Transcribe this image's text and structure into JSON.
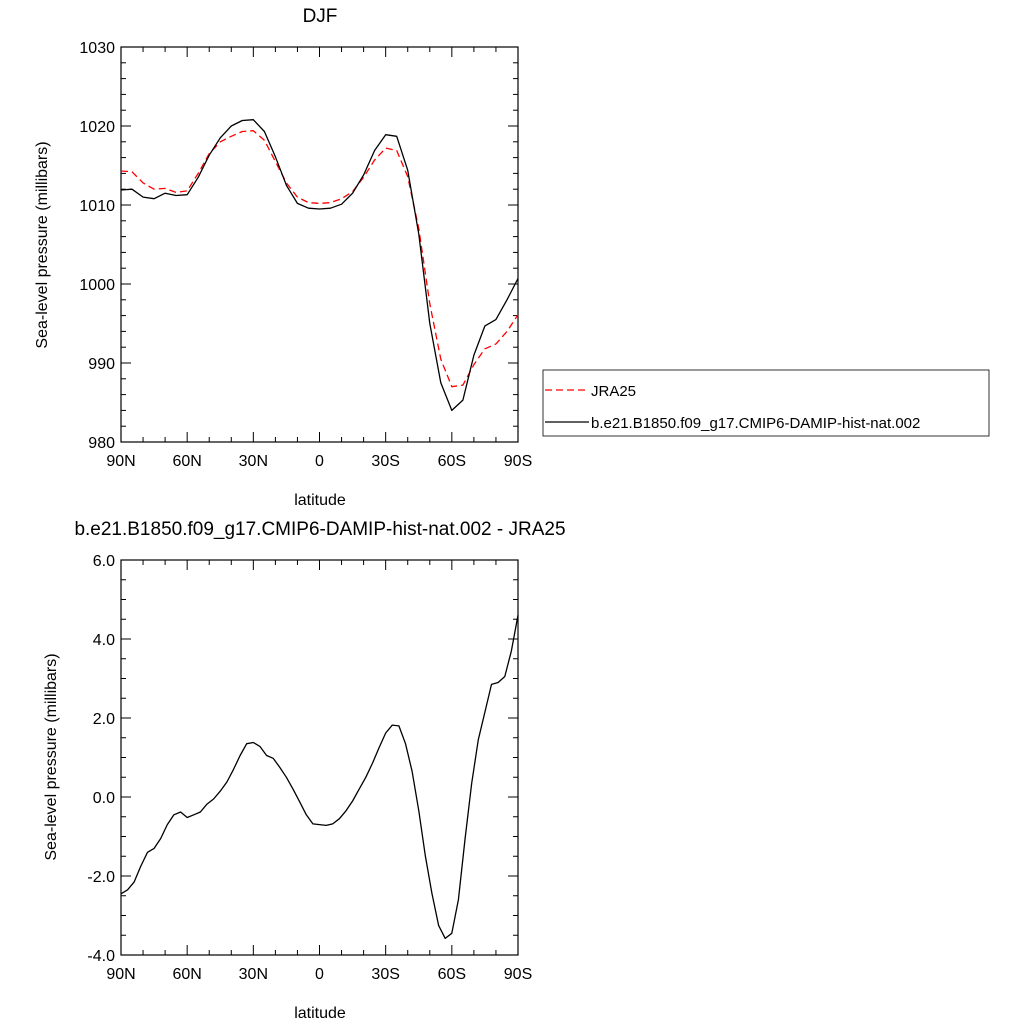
{
  "chart_data": [
    {
      "type": "line",
      "title": "DJF",
      "xlabel": "latitude",
      "ylabel": "Sea-level pressure (millibars)",
      "xlim": [
        90,
        -90
      ],
      "ylim": [
        980,
        1030
      ],
      "xticks": [
        90,
        60,
        30,
        0,
        -30,
        -60,
        -90
      ],
      "xtick_labels": [
        "90N",
        "60N",
        "30N",
        "0",
        "30S",
        "60S",
        "90S"
      ],
      "yticks": [
        980,
        990,
        1000,
        1010,
        1020,
        1030
      ],
      "ytick_labels": [
        "980",
        "990",
        "1000",
        "1010",
        "1020",
        "1030"
      ],
      "legend": {
        "placement": "right",
        "entries": [
          "JRA25",
          "b.e21.B1850.f09_g17.CMIP6-DAMIP-hist-nat.002"
        ]
      },
      "series": [
        {
          "name": "JRA25",
          "color": "#ff0000",
          "dash": "dashed",
          "x": [
            90,
            85,
            80,
            75,
            70,
            65,
            60,
            55,
            50,
            45,
            40,
            35,
            30,
            25,
            20,
            15,
            10,
            5,
            0,
            -5,
            -10,
            -15,
            -20,
            -25,
            -30,
            -35,
            -40,
            -45,
            -50,
            -55,
            -60,
            -65,
            -70,
            -75,
            -80,
            -85,
            -90
          ],
          "values": [
            1014.3,
            1014.2,
            1012.8,
            1012.0,
            1012.1,
            1011.6,
            1011.8,
            1014.0,
            1016.5,
            1018.0,
            1018.7,
            1019.3,
            1019.4,
            1018.2,
            1015.5,
            1012.8,
            1011.0,
            1010.3,
            1010.2,
            1010.3,
            1010.8,
            1011.7,
            1013.5,
            1015.7,
            1017.2,
            1016.9,
            1013.6,
            1007.0,
            997.5,
            990.5,
            987.0,
            987.2,
            989.8,
            991.8,
            992.4,
            994.0,
            996.1
          ]
        },
        {
          "name": "b.e21.B1850.f09_g17.CMIP6-DAMIP-hist-nat.002",
          "color": "#000000",
          "dash": "solid",
          "x": [
            90,
            85,
            80,
            75,
            70,
            65,
            60,
            55,
            50,
            45,
            40,
            35,
            30,
            25,
            20,
            15,
            10,
            5,
            0,
            -5,
            -10,
            -15,
            -20,
            -25,
            -30,
            -35,
            -40,
            -45,
            -50,
            -55,
            -60,
            -65,
            -70,
            -75,
            -80,
            -85,
            -90
          ],
          "values": [
            1011.9,
            1012.0,
            1011.0,
            1010.8,
            1011.5,
            1011.2,
            1011.3,
            1013.5,
            1016.3,
            1018.5,
            1020.0,
            1020.7,
            1020.8,
            1019.3,
            1016.1,
            1012.5,
            1010.2,
            1009.6,
            1009.5,
            1009.6,
            1010.1,
            1011.5,
            1013.8,
            1016.9,
            1018.9,
            1018.7,
            1014.4,
            1006.3,
            995.0,
            987.5,
            984.0,
            985.3,
            991.0,
            994.7,
            995.5,
            998.0,
            1000.7
          ]
        }
      ]
    },
    {
      "type": "line",
      "title": "b.e21.B1850.f09_g17.CMIP6-DAMIP-hist-nat.002 - JRA25",
      "xlabel": "latitude",
      "ylabel": "Sea-level pressure (millibars)",
      "xlim": [
        90,
        -90
      ],
      "ylim": [
        -4.0,
        6.0
      ],
      "xticks": [
        90,
        60,
        30,
        0,
        -30,
        -60,
        -90
      ],
      "xtick_labels": [
        "90N",
        "60N",
        "30N",
        "0",
        "30S",
        "60S",
        "90S"
      ],
      "yticks": [
        -4.0,
        -2.0,
        0.0,
        2.0,
        4.0,
        6.0
      ],
      "ytick_labels": [
        "-4.0",
        "-2.0",
        "0.0",
        "2.0",
        "4.0",
        "6.0"
      ],
      "series": [
        {
          "color": "#000000",
          "dash": "solid",
          "x": [
            90,
            87,
            84,
            81,
            78,
            75,
            72,
            69,
            66,
            63,
            60,
            57,
            54,
            51,
            48,
            45,
            42,
            39,
            36,
            33,
            30,
            27,
            24,
            21,
            18,
            15,
            12,
            9,
            6,
            3,
            0,
            -3,
            -6,
            -9,
            -12,
            -15,
            -18,
            -21,
            -24,
            -27,
            -30,
            -33,
            -36,
            -39,
            -42,
            -45,
            -48,
            -51,
            -54,
            -57,
            -60,
            -63,
            -66,
            -69,
            -72,
            -75,
            -78,
            -81,
            -84,
            -87,
            -90
          ],
          "values": [
            -2.45,
            -2.35,
            -2.15,
            -1.75,
            -1.4,
            -1.3,
            -1.05,
            -0.7,
            -0.45,
            -0.38,
            -0.52,
            -0.45,
            -0.38,
            -0.18,
            -0.05,
            0.15,
            0.38,
            0.7,
            1.05,
            1.35,
            1.38,
            1.28,
            1.05,
            0.98,
            0.75,
            0.5,
            0.2,
            -0.12,
            -0.45,
            -0.68,
            -0.7,
            -0.72,
            -0.68,
            -0.55,
            -0.35,
            -0.1,
            0.2,
            0.5,
            0.85,
            1.25,
            1.62,
            1.82,
            1.8,
            1.35,
            0.65,
            -0.35,
            -1.5,
            -2.45,
            -3.25,
            -3.58,
            -3.45,
            -2.6,
            -1.05,
            0.35,
            1.45,
            2.15,
            2.85,
            2.9,
            3.05,
            3.7,
            4.6
          ]
        }
      ]
    }
  ]
}
